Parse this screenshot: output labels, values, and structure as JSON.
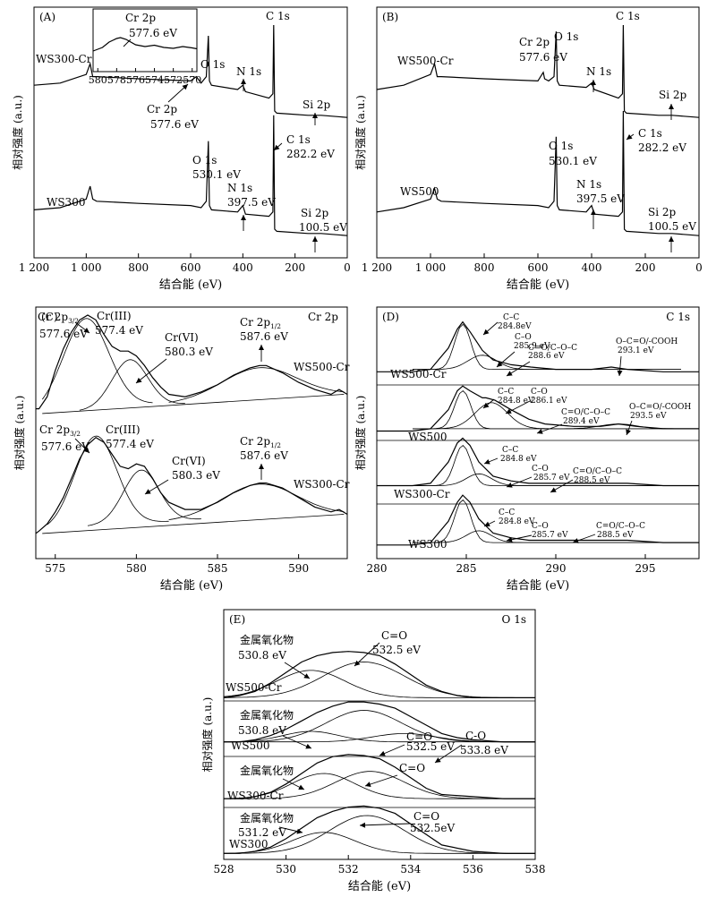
{
  "chart_data": [
    {
      "id": "A",
      "type": "line",
      "panel_label": "(A)",
      "xlabel": "结合能 (eV)",
      "ylabel": "相对强度 (a.u.)",
      "xlim": [
        1200,
        0
      ],
      "xticks": [
        "1 200",
        "1 000",
        "800",
        "600",
        "400",
        "200",
        "0"
      ],
      "xtick_values": [
        1200,
        1000,
        800,
        600,
        400,
        200,
        0
      ],
      "series": [
        {
          "name": "WS300-Cr",
          "x": [
            1200,
            1100,
            1000,
            985,
            975,
            960,
            800,
            600,
            578,
            560,
            540,
            532,
            528,
            520,
            420,
            400,
            390,
            300,
            285,
            282,
            278,
            270,
            150,
            100,
            0
          ],
          "y": [
            0.72,
            0.73,
            0.77,
            0.82,
            0.76,
            0.76,
            0.75,
            0.74,
            0.76,
            0.73,
            0.76,
            0.95,
            0.74,
            0.72,
            0.7,
            0.72,
            0.69,
            0.66,
            0.68,
            1.0,
            0.6,
            0.59,
            0.58,
            0.58,
            0.57
          ]
        },
        {
          "name": "WS300",
          "x": [
            1200,
            1100,
            1000,
            985,
            975,
            960,
            800,
            600,
            560,
            540,
            532,
            528,
            520,
            420,
            400,
            390,
            300,
            285,
            282,
            278,
            270,
            150,
            100,
            0
          ],
          "y": [
            0.14,
            0.15,
            0.19,
            0.25,
            0.19,
            0.18,
            0.17,
            0.16,
            0.15,
            0.18,
            0.46,
            0.16,
            0.14,
            0.13,
            0.16,
            0.12,
            0.11,
            0.13,
            0.58,
            0.05,
            0.04,
            0.03,
            0.03,
            0.02
          ]
        }
      ],
      "annotations": [
        {
          "text": "O 1s"
        },
        {
          "text": "C 1s"
        },
        {
          "text": "N 1s"
        },
        {
          "text": "Si 2p"
        },
        {
          "text": "Cr 2p"
        },
        {
          "text": "577.6 eV"
        },
        {
          "text": "O 1s"
        },
        {
          "text": "530.1 eV"
        },
        {
          "text": "C 1s"
        },
        {
          "text": "282.2 eV"
        },
        {
          "text": "N 1s"
        },
        {
          "text": "397.5 eV"
        },
        {
          "text": "Si 2p"
        },
        {
          "text": "100.5 eV"
        }
      ],
      "inset": {
        "title": "Cr 2p",
        "label": "577.6 eV",
        "xticks": [
          "580",
          "578",
          "576",
          "574",
          "572",
          "570"
        ],
        "xtick_values": [
          580,
          578,
          576,
          574,
          572,
          570
        ],
        "x": [
          580.5,
          579.5,
          578.8,
          578,
          577.6,
          577,
          576,
          575,
          574,
          573,
          572,
          571,
          570,
          569.5
        ],
        "y": [
          0.3,
          0.38,
          0.5,
          0.58,
          0.6,
          0.56,
          0.44,
          0.4,
          0.43,
          0.38,
          0.36,
          0.4,
          0.37,
          0.35
        ]
      }
    },
    {
      "id": "B",
      "type": "line",
      "panel_label": "(B)",
      "xlabel": "结合能 (eV)",
      "ylabel": "相对强度 (a.u.)",
      "xlim": [
        1200,
        0
      ],
      "xticks": [
        "1 200",
        "1 000",
        "800",
        "600",
        "400",
        "200",
        "0"
      ],
      "xtick_values": [
        1200,
        1000,
        800,
        600,
        400,
        200,
        0
      ],
      "series": [
        {
          "name": "WS500-Cr",
          "x": [
            1200,
            1100,
            1000,
            985,
            975,
            960,
            800,
            600,
            580,
            575,
            560,
            540,
            532,
            528,
            520,
            420,
            400,
            390,
            300,
            285,
            282,
            278,
            270,
            150,
            100,
            0
          ],
          "y": [
            0.7,
            0.72,
            0.77,
            0.82,
            0.76,
            0.76,
            0.75,
            0.74,
            0.78,
            0.75,
            0.74,
            0.76,
            0.97,
            0.74,
            0.72,
            0.71,
            0.73,
            0.7,
            0.66,
            0.68,
            1.0,
            0.6,
            0.59,
            0.58,
            0.58,
            0.57
          ]
        },
        {
          "name": "WS500",
          "x": [
            1200,
            1100,
            1000,
            985,
            975,
            960,
            800,
            600,
            560,
            540,
            532,
            528,
            520,
            420,
            400,
            390,
            300,
            285,
            282,
            278,
            270,
            150,
            100,
            0
          ],
          "y": [
            0.13,
            0.15,
            0.19,
            0.24,
            0.19,
            0.18,
            0.17,
            0.16,
            0.15,
            0.18,
            0.48,
            0.16,
            0.14,
            0.13,
            0.16,
            0.12,
            0.11,
            0.13,
            0.6,
            0.05,
            0.04,
            0.03,
            0.03,
            0.02
          ]
        }
      ],
      "annotations": [
        {
          "text": "C 1s"
        },
        {
          "text": "Cr 2p"
        },
        {
          "text": "577.6 eV"
        },
        {
          "text": "O 1s"
        },
        {
          "text": "N 1s"
        },
        {
          "text": "Si 2p"
        },
        {
          "text": "O 1s"
        },
        {
          "text": "530.1 eV"
        },
        {
          "text": "C 1s"
        },
        {
          "text": "282.2 eV"
        },
        {
          "text": "N 1s"
        },
        {
          "text": "397.5 eV"
        },
        {
          "text": "Si 2p"
        },
        {
          "text": "100.5 eV"
        }
      ]
    },
    {
      "id": "C",
      "type": "line",
      "panel_label": "(C)",
      "title": "Cr 2p",
      "xlabel": "结合能 (eV)",
      "ylabel": "相对强度 (a.u.)",
      "xlim": [
        573.8,
        593
      ],
      "xticks": [
        "575",
        "580",
        "585",
        "590"
      ],
      "xtick_values": [
        575,
        580,
        585,
        590
      ],
      "series": [
        {
          "name": "WS500-Cr",
          "x": [
            573.8,
            574,
            574.5,
            575,
            575.5,
            576,
            576.5,
            577,
            577.5,
            578,
            578.5,
            579,
            579.5,
            580,
            580.5,
            581,
            581.5,
            582,
            583,
            584,
            585,
            586,
            587,
            587.6,
            588,
            589,
            590,
            591,
            592,
            592.5,
            593
          ],
          "y": [
            0.58,
            0.58,
            0.63,
            0.74,
            0.83,
            0.9,
            0.95,
            0.97,
            0.95,
            0.89,
            0.84,
            0.82,
            0.82,
            0.8,
            0.76,
            0.71,
            0.67,
            0.64,
            0.63,
            0.65,
            0.68,
            0.72,
            0.75,
            0.76,
            0.76,
            0.73,
            0.69,
            0.66,
            0.64,
            0.66,
            0.64
          ]
        },
        {
          "name": "WS300-Cr",
          "x": [
            573.8,
            574,
            574.5,
            575,
            575.5,
            576,
            576.5,
            577,
            577.5,
            578,
            578.5,
            579,
            579.5,
            580,
            580.5,
            581,
            581.5,
            582,
            583,
            584,
            585,
            586,
            587,
            587.6,
            588,
            589,
            590,
            591,
            592,
            592.5,
            593
          ],
          "y": [
            0.06,
            0.07,
            0.1,
            0.15,
            0.21,
            0.29,
            0.37,
            0.43,
            0.46,
            0.44,
            0.39,
            0.34,
            0.33,
            0.35,
            0.34,
            0.29,
            0.23,
            0.19,
            0.16,
            0.16,
            0.19,
            0.23,
            0.26,
            0.27,
            0.27,
            0.25,
            0.21,
            0.17,
            0.15,
            0.16,
            0.14
          ]
        }
      ],
      "annotations": [
        {
          "text": "Cr 2p3/2"
        },
        {
          "text": "577.6 eV"
        },
        {
          "text": "Cr(III)"
        },
        {
          "text": "577.4 eV"
        },
        {
          "text": "Cr(VI)"
        },
        {
          "text": "580.3 eV"
        },
        {
          "text": "Cr 2p1/2"
        },
        {
          "text": "587.6 eV"
        },
        {
          "text": "Cr 2p3/2"
        },
        {
          "text": "577.6 eV"
        },
        {
          "text": "Cr(III)"
        },
        {
          "text": "577.4 eV"
        },
        {
          "text": "Cr(VI)"
        },
        {
          "text": "580.3 eV"
        },
        {
          "text": "Cr 2p1/2"
        },
        {
          "text": "587.6 eV"
        }
      ]
    },
    {
      "id": "D",
      "type": "line",
      "panel_label": "(D)",
      "title": "C 1s",
      "xlabel": "结合能 (eV)",
      "ylabel": "相对强度 (a.u.)",
      "xlim": [
        280,
        298
      ],
      "xticks": [
        "280",
        "285",
        "290",
        "295"
      ],
      "xtick_values": [
        280,
        285,
        290,
        295
      ],
      "series": [
        {
          "name": "WS500-Cr",
          "x": [
            280,
            282,
            283,
            284,
            284.5,
            284.8,
            285.2,
            285.9,
            286.5,
            287.5,
            288.6,
            290,
            292,
            293.1,
            294,
            296,
            298
          ],
          "y": [
            0.78,
            0.78,
            0.79,
            0.88,
            0.96,
            0.99,
            0.95,
            0.87,
            0.83,
            0.81,
            0.8,
            0.79,
            0.79,
            0.8,
            0.79,
            0.78,
            0.78
          ]
        },
        {
          "name": "WS500",
          "x": [
            280,
            282,
            283,
            284,
            284.5,
            284.8,
            285.2,
            285.9,
            286.1,
            286.6,
            287.5,
            288.5,
            289.4,
            291,
            292.5,
            293.5,
            294.5,
            296,
            298
          ],
          "y": [
            0.53,
            0.53,
            0.54,
            0.62,
            0.7,
            0.72,
            0.7,
            0.67,
            0.67,
            0.66,
            0.62,
            0.58,
            0.56,
            0.55,
            0.55,
            0.56,
            0.55,
            0.54,
            0.54
          ]
        },
        {
          "name": "WS300-Cr",
          "x": [
            280,
            282,
            283,
            284,
            284.5,
            284.8,
            285.2,
            285.7,
            286.5,
            287.5,
            288.5,
            290,
            292,
            294,
            296,
            298
          ],
          "y": [
            0.3,
            0.3,
            0.31,
            0.4,
            0.48,
            0.5,
            0.47,
            0.4,
            0.34,
            0.32,
            0.31,
            0.31,
            0.31,
            0.31,
            0.3,
            0.3
          ]
        },
        {
          "name": "WS300",
          "x": [
            280,
            282,
            283,
            284,
            284.5,
            284.8,
            285.2,
            285.7,
            286.5,
            287.5,
            288.5,
            290,
            292,
            294,
            296,
            298
          ],
          "y": [
            0.05,
            0.05,
            0.06,
            0.15,
            0.23,
            0.26,
            0.23,
            0.16,
            0.1,
            0.08,
            0.07,
            0.07,
            0.07,
            0.07,
            0.06,
            0.06
          ]
        }
      ],
      "annotations": [
        {
          "text": "C–C"
        },
        {
          "text": "284.8eV"
        },
        {
          "text": "C–O"
        },
        {
          "text": "285.9 eV"
        },
        {
          "text": "C=O/C–O–C"
        },
        {
          "text": "288.6 eV"
        },
        {
          "text": "O–C=O/-COOH"
        },
        {
          "text": "293.1 eV"
        },
        {
          "text": "C–C"
        },
        {
          "text": "284.8 eV"
        },
        {
          "text": "C–O"
        },
        {
          "text": "286.1 eV"
        },
        {
          "text": "C=O/C–O–C"
        },
        {
          "text": "289.4 eV"
        },
        {
          "text": "O–C=O/-COOH"
        },
        {
          "text": "293.5 eV"
        },
        {
          "text": "C–C"
        },
        {
          "text": "284.8 eV"
        },
        {
          "text": "C–O"
        },
        {
          "text": "285.7 eV"
        },
        {
          "text": "C=O/C–O–C"
        },
        {
          "text": "288.5 eV"
        },
        {
          "text": "C–C"
        },
        {
          "text": "284.8 eV"
        },
        {
          "text": "C–O"
        },
        {
          "text": "285.7 eV"
        },
        {
          "text": "C=O/C–O–C"
        },
        {
          "text": "288.5 eV"
        }
      ]
    },
    {
      "id": "E",
      "type": "line",
      "panel_label": "(E)",
      "title": "O 1s",
      "xlabel": "结合能 (eV)",
      "ylabel": "相对强度 (a.u.)",
      "xlim": [
        528,
        538
      ],
      "xticks": [
        "528",
        "530",
        "532",
        "534",
        "536",
        "538"
      ],
      "xtick_values": [
        528,
        530,
        532,
        534,
        536,
        538
      ],
      "series": [
        {
          "name": "WS500-Cr",
          "x": [
            528,
            528.5,
            529,
            529.5,
            530,
            530.5,
            531,
            531.5,
            532,
            532.5,
            533,
            533.5,
            534,
            534.5,
            535,
            535.5,
            536,
            537,
            538
          ],
          "y": [
            0.76,
            0.77,
            0.79,
            0.83,
            0.88,
            0.93,
            0.96,
            0.975,
            0.98,
            0.975,
            0.96,
            0.92,
            0.87,
            0.82,
            0.79,
            0.77,
            0.76,
            0.76,
            0.76
          ]
        },
        {
          "name": "WS500",
          "x": [
            528,
            528.5,
            529,
            529.5,
            530,
            530.5,
            531,
            531.5,
            532,
            532.5,
            533,
            533.5,
            534,
            534.5,
            535,
            535.5,
            536,
            537,
            538
          ],
          "y": [
            0.55,
            0.55,
            0.56,
            0.58,
            0.61,
            0.65,
            0.69,
            0.72,
            0.74,
            0.74,
            0.73,
            0.71,
            0.67,
            0.63,
            0.59,
            0.57,
            0.56,
            0.55,
            0.55
          ]
        },
        {
          "name": "WS300-Cr",
          "x": [
            528,
            528.5,
            529,
            529.5,
            530,
            530.5,
            531,
            531.5,
            532,
            532.5,
            533,
            533.5,
            534,
            534.5,
            535,
            536,
            537,
            538
          ],
          "y": [
            0.28,
            0.28,
            0.29,
            0.31,
            0.35,
            0.4,
            0.45,
            0.48,
            0.49,
            0.485,
            0.47,
            0.43,
            0.38,
            0.33,
            0.3,
            0.29,
            0.28,
            0.28
          ]
        },
        {
          "name": "WS300",
          "x": [
            528,
            528.5,
            529,
            529.5,
            530,
            530.5,
            531,
            531.5,
            532,
            532.5,
            533,
            533.5,
            534,
            534.5,
            535,
            536,
            537,
            538
          ],
          "y": [
            0.02,
            0.02,
            0.03,
            0.05,
            0.09,
            0.14,
            0.19,
            0.22,
            0.24,
            0.245,
            0.235,
            0.21,
            0.16,
            0.11,
            0.06,
            0.03,
            0.02,
            0.02
          ]
        }
      ],
      "annotations": [
        {
          "text": "金属氧化物"
        },
        {
          "text": "530.8 eV"
        },
        {
          "text": "C=O"
        },
        {
          "text": "532.5 eV"
        },
        {
          "text": "金属氧化物"
        },
        {
          "text": "530.8 eV"
        },
        {
          "text": "C=O"
        },
        {
          "text": "532.5 eV"
        },
        {
          "text": "C-O"
        },
        {
          "text": "533.8 eV"
        },
        {
          "text": "金属氧化物"
        },
        {
          "text": "C=O"
        },
        {
          "text": "金属氧化物"
        },
        {
          "text": "531.2 eV"
        },
        {
          "text": "C=O"
        },
        {
          "text": "532.5eV"
        }
      ]
    }
  ]
}
